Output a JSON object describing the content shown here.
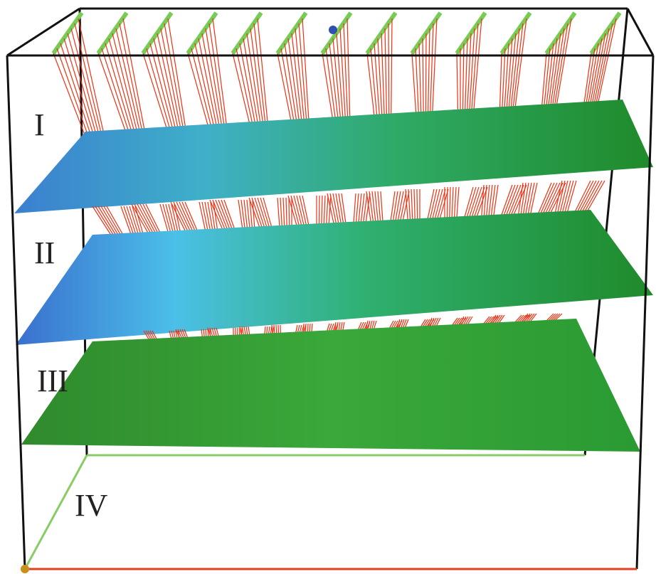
{
  "labels": [
    "I",
    "II",
    "III",
    "IV"
  ]
}
